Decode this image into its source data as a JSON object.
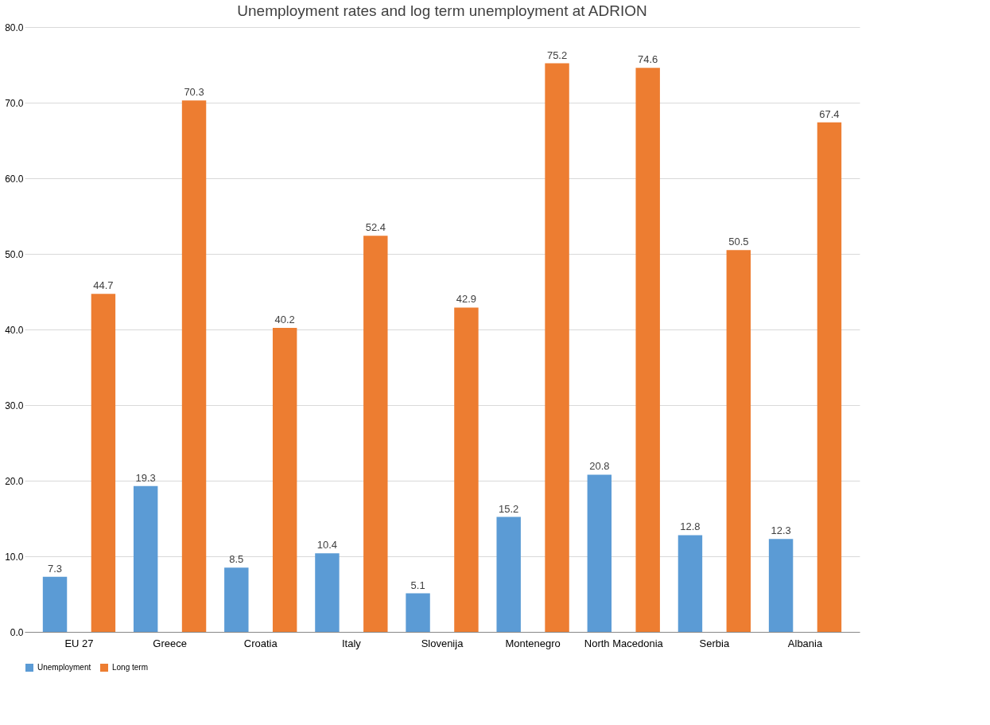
{
  "chart_data": {
    "type": "bar",
    "title": "Unemployment rates and log term unemployment at ADRION",
    "categories": [
      "EU 27",
      "Greece",
      "Croatia",
      "Italy",
      "Slovenija",
      "Montenegro",
      "North Macedonia",
      "Serbia",
      "Albania"
    ],
    "series": [
      {
        "name": "Unemployment",
        "color": "#5b9bd5",
        "values": [
          7.3,
          19.3,
          8.5,
          10.4,
          5.1,
          15.2,
          20.8,
          12.8,
          12.3
        ]
      },
      {
        "name": "Long term",
        "color": "#ed7d31",
        "values": [
          44.7,
          70.3,
          40.2,
          52.4,
          42.9,
          75.2,
          74.6,
          50.5,
          67.4
        ]
      }
    ],
    "ylim": [
      0,
      80
    ],
    "yticks": [
      {
        "value": 0,
        "label": "0.0"
      },
      {
        "value": 10,
        "label": "10.0"
      },
      {
        "value": 20,
        "label": "20.0"
      },
      {
        "value": 30,
        "label": "30.0"
      },
      {
        "value": 40,
        "label": "40.0"
      },
      {
        "value": 50,
        "label": "50.0"
      },
      {
        "value": 60,
        "label": "60.0"
      },
      {
        "value": 70,
        "label": "70.0"
      },
      {
        "value": 80,
        "label": "80.0"
      }
    ],
    "grid": "y",
    "legend": "bottom",
    "data_labels": true
  }
}
